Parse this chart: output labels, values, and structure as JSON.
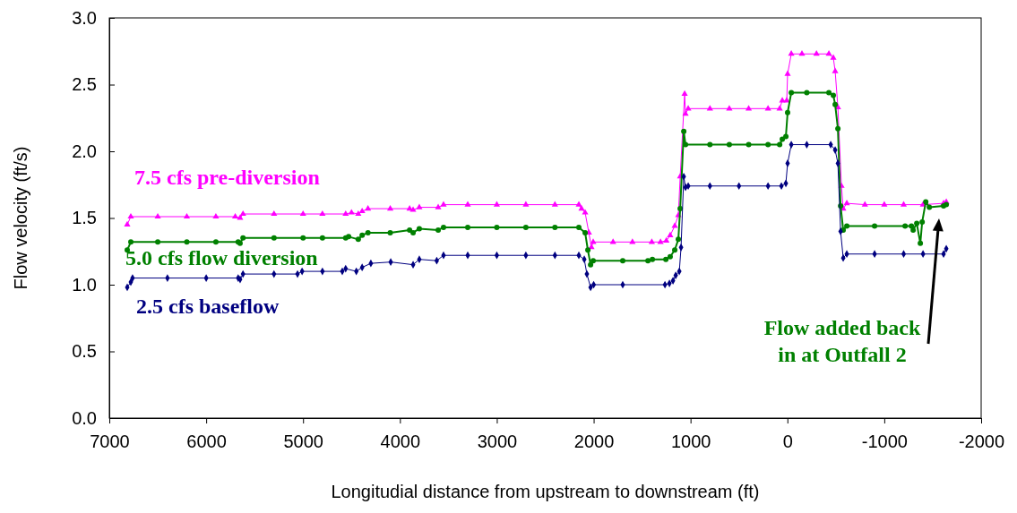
{
  "chart_data": {
    "type": "line",
    "xlabel": "Longitudial distance from upstream to downstream (ft)",
    "ylabel": "Flow velocity (ft/s)",
    "xlim": [
      7000,
      -2000
    ],
    "xticks": [
      7000,
      6000,
      5000,
      4000,
      3000,
      2000,
      1000,
      0,
      {
        "value": -1000,
        "label": "-1000"
      },
      {
        "value": -2000,
        "label": "-2000"
      }
    ],
    "ylim": [
      0,
      3
    ],
    "yticks": [
      {
        "value": 0,
        "label": "0.0"
      },
      0.5,
      {
        "value": 1,
        "label": "1.0"
      },
      1.5,
      {
        "value": 2,
        "label": "2.0"
      },
      2.5,
      {
        "value": 3,
        "label": "3.0"
      }
    ],
    "grid": false,
    "line_style": "solid",
    "series": [
      {
        "name": "7.5 cfs pre-diversion",
        "color": "#ff00ff",
        "marker": "triangle",
        "x": [
          6815,
          6778,
          6500,
          6200,
          5900,
          5700,
          5650,
          5620,
          5300,
          5000,
          4800,
          4560,
          4500,
          4430,
          4390,
          4330,
          4100,
          3900,
          3864,
          3800,
          3605,
          3550,
          3300,
          3000,
          2700,
          2400,
          2153,
          2125,
          2088,
          2050,
          2023,
          2005,
          1800,
          1600,
          1400,
          1310,
          1250,
          1210,
          1163,
          1126,
          1107,
          1061,
          1052,
          1024,
          800,
          600,
          400,
          200,
          80,
          53,
          7,
          -2,
          -40,
          -150,
          -300,
          -428,
          -474,
          -493,
          -521,
          -558,
          -576,
          -613,
          -800,
          -1000,
          -1200,
          -1400,
          -1612,
          -1640
        ],
        "values": [
          1.45,
          1.51,
          1.51,
          1.51,
          1.51,
          1.51,
          1.5,
          1.53,
          1.53,
          1.53,
          1.53,
          1.53,
          1.54,
          1.53,
          1.55,
          1.57,
          1.57,
          1.57,
          1.56,
          1.58,
          1.58,
          1.6,
          1.6,
          1.6,
          1.6,
          1.6,
          1.6,
          1.57,
          1.54,
          1.39,
          1.28,
          1.32,
          1.32,
          1.32,
          1.32,
          1.32,
          1.33,
          1.37,
          1.44,
          1.52,
          1.81,
          2.43,
          2.28,
          2.32,
          2.32,
          2.32,
          2.32,
          2.32,
          2.32,
          2.38,
          2.38,
          2.58,
          2.73,
          2.73,
          2.73,
          2.73,
          2.7,
          2.6,
          2.33,
          1.74,
          1.57,
          1.61,
          1.6,
          1.6,
          1.6,
          1.6,
          1.61,
          1.62
        ]
      },
      {
        "name": "5.0 cfs flow diversion",
        "color": "#008000",
        "marker": "circle",
        "x": [
          6815,
          6778,
          6500,
          6200,
          5900,
          5670,
          5650,
          5620,
          5300,
          5000,
          4800,
          4560,
          4530,
          4430,
          4390,
          4330,
          4100,
          3900,
          3864,
          3800,
          3605,
          3550,
          3300,
          3000,
          2700,
          2400,
          2153,
          2088,
          2060,
          2032,
          2005,
          1700,
          1440,
          1394,
          1255,
          1210,
          1163,
          1126,
          1107,
          1070,
          1052,
          800,
          600,
          400,
          200,
          80,
          53,
          16,
          -2,
          -40,
          -200,
          -428,
          -474,
          -493,
          -521,
          -549,
          -576,
          -613,
          -900,
          -1215,
          -1280,
          -1298,
          -1335,
          -1372,
          -1391,
          -1428,
          -1465,
          -1612,
          -1640
        ],
        "values": [
          1.26,
          1.32,
          1.32,
          1.32,
          1.32,
          1.32,
          1.31,
          1.35,
          1.35,
          1.35,
          1.35,
          1.35,
          1.36,
          1.34,
          1.37,
          1.39,
          1.39,
          1.41,
          1.39,
          1.42,
          1.41,
          1.43,
          1.43,
          1.43,
          1.43,
          1.43,
          1.43,
          1.39,
          1.26,
          1.15,
          1.18,
          1.18,
          1.18,
          1.19,
          1.19,
          1.21,
          1.26,
          1.34,
          1.57,
          2.15,
          2.05,
          2.05,
          2.05,
          2.05,
          2.05,
          2.05,
          2.09,
          2.11,
          2.29,
          2.44,
          2.44,
          2.44,
          2.42,
          2.35,
          2.17,
          1.59,
          1.41,
          1.44,
          1.44,
          1.44,
          1.44,
          1.41,
          1.46,
          1.31,
          1.47,
          1.62,
          1.58,
          1.59,
          1.6
        ]
      },
      {
        "name": "2.5 cfs baseflow",
        "color": "#000080",
        "marker": "diamond",
        "x": [
          6815,
          6778,
          6760,
          6400,
          6000,
          5670,
          5650,
          5620,
          5300,
          5057,
          5010,
          4800,
          4595,
          4560,
          4450,
          4390,
          4300,
          4095,
          3864,
          3800,
          3620,
          3550,
          3300,
          3000,
          2700,
          2400,
          2153,
          2097,
          2070,
          2032,
          2000,
          1700,
          1264,
          1218,
          1181,
          1153,
          1116,
          1098,
          1070,
          1052,
          1024,
          800,
          500,
          200,
          62,
          16,
          -2,
          -40,
          -200,
          -447,
          -493,
          -521,
          -549,
          -576,
          -613,
          -900,
          -1200,
          -1400,
          -1612,
          -1640
        ],
        "values": [
          0.98,
          1.02,
          1.05,
          1.05,
          1.05,
          1.05,
          1.04,
          1.08,
          1.08,
          1.08,
          1.1,
          1.1,
          1.1,
          1.12,
          1.1,
          1.13,
          1.16,
          1.17,
          1.15,
          1.19,
          1.18,
          1.22,
          1.22,
          1.22,
          1.22,
          1.22,
          1.22,
          1.19,
          1.08,
          0.98,
          1.0,
          1.0,
          1.0,
          1.01,
          1.03,
          1.07,
          1.1,
          1.28,
          1.81,
          1.73,
          1.74,
          1.74,
          1.74,
          1.74,
          1.74,
          1.76,
          1.91,
          2.05,
          2.05,
          2.05,
          2.01,
          1.91,
          1.4,
          1.2,
          1.23,
          1.23,
          1.23,
          1.23,
          1.23,
          1.27
        ]
      }
    ],
    "annotations": [
      "Flow added back in at Outfall 2"
    ]
  }
}
